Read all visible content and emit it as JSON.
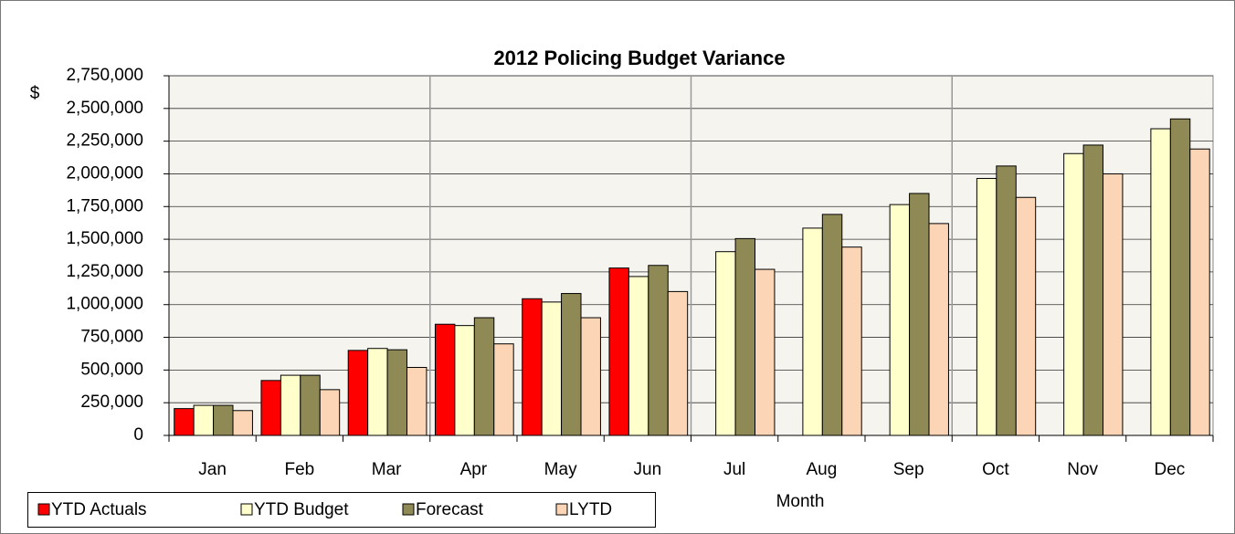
{
  "chart_data": {
    "type": "bar",
    "title": "2012 Policing Budget Variance",
    "ylabel": "$",
    "xlabel": "Month",
    "categories": [
      "Jan",
      "Feb",
      "Mar",
      "Apr",
      "May",
      "Jun",
      "Jul",
      "Aug",
      "Sep",
      "Oct",
      "Nov",
      "Dec"
    ],
    "series": [
      {
        "name": "YTD Actuals",
        "color": "#ff0000",
        "values": [
          205000,
          420000,
          650000,
          850000,
          1045000,
          1280000,
          null,
          null,
          null,
          null,
          null,
          null
        ]
      },
      {
        "name": "YTD Budget",
        "color": "#ffffcc",
        "values": [
          230000,
          460000,
          665000,
          840000,
          1020000,
          1215000,
          1405000,
          1585000,
          1765000,
          1965000,
          2155000,
          2345000
        ]
      },
      {
        "name": "Forecast",
        "color": "#8f8a55",
        "values": [
          230000,
          460000,
          655000,
          900000,
          1085000,
          1300000,
          1505000,
          1690000,
          1850000,
          2060000,
          2220000,
          2420000
        ]
      },
      {
        "name": "LYTD",
        "color": "#fbd5b5",
        "values": [
          190000,
          350000,
          520000,
          700000,
          900000,
          1100000,
          1270000,
          1440000,
          1620000,
          1820000,
          2000000,
          2190000
        ]
      }
    ],
    "ylim": [
      0,
      2750000
    ],
    "yticks": [
      0,
      {
        "value": 250000,
        "label": "250,000"
      },
      {
        "value": 500000,
        "label": "500,000"
      },
      {
        "value": 750000,
        "label": "750,000"
      },
      {
        "value": 1000000,
        "label": "1,000,000"
      },
      {
        "value": 1250000,
        "label": "1,250,000"
      },
      {
        "value": 1500000,
        "label": "1,500,000"
      },
      {
        "value": 1750000,
        "label": "1,750,000"
      },
      {
        "value": 2000000,
        "label": "2,000,000"
      },
      {
        "value": 2250000,
        "label": "2,250,000"
      },
      {
        "value": 2500000,
        "label": "2,500,000"
      },
      {
        "value": 2750000,
        "label": "2,750,000"
      }
    ],
    "grid": true,
    "legend": "bottom-left"
  }
}
